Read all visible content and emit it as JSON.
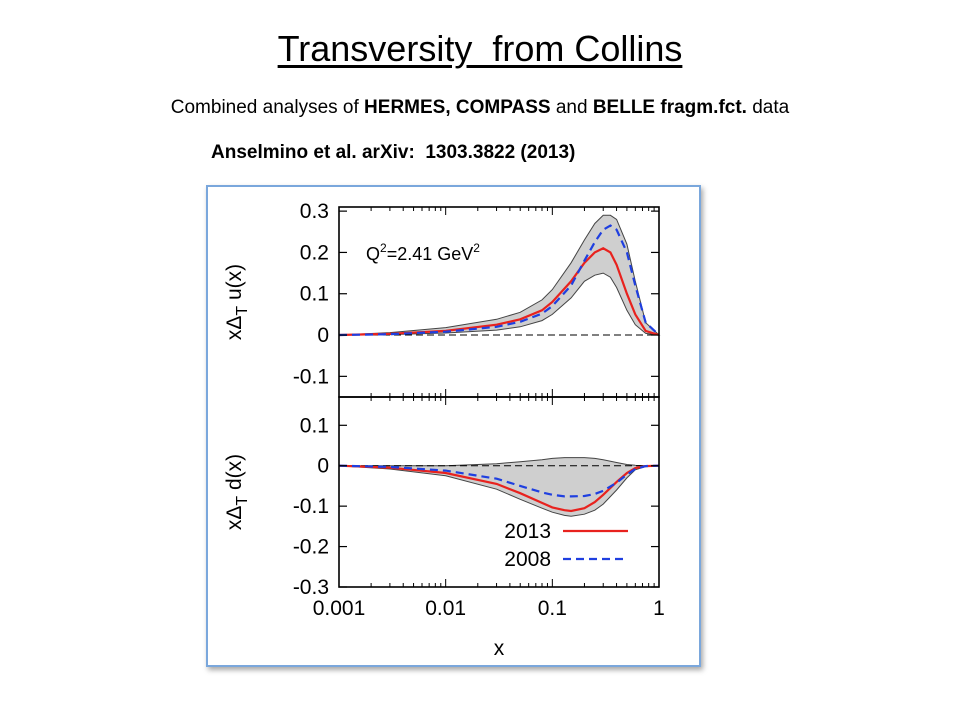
{
  "slide": {
    "title": "Transversity  from Collins",
    "subtitle_plain_1": "Combined analyses of ",
    "subtitle_bold": "HERMES, COMPASS",
    "subtitle_plain_2": " and ",
    "subtitle_bold_2": "BELLE fragm.fct.",
    "subtitle_plain_3": " data",
    "reference": "Anselmino et al. arXiv:  1303.3822 (2013)"
  },
  "colors": {
    "band_fill": "#cfcfcf",
    "band_edge": "#444444",
    "series_2013": "#e8221e",
    "series_2008": "#1f3fe0",
    "frame": "#7aa7dc"
  },
  "chart_data": [
    {
      "type": "line",
      "xscale": "log",
      "xlim": [
        0.001,
        1
      ],
      "ylim": [
        -0.15,
        0.31
      ],
      "ylabel": "xΔT u(x)",
      "xlabel": "",
      "annotation": "Q²=2.41 GeV²",
      "yticks": [
        "0.3",
        "0.2",
        "0.1",
        "0",
        "-0.1"
      ],
      "ytick_values": [
        0.3,
        0.2,
        0.1,
        0,
        -0.1
      ],
      "grid": false,
      "x": [
        0.001,
        0.003,
        0.01,
        0.03,
        0.05,
        0.08,
        0.1,
        0.15,
        0.2,
        0.25,
        0.3,
        0.35,
        0.4,
        0.5,
        0.6,
        0.75,
        1
      ],
      "series": [
        {
          "name": "2013",
          "style": "solid",
          "values": [
            0.0,
            0.003,
            0.01,
            0.025,
            0.038,
            0.06,
            0.08,
            0.13,
            0.175,
            0.2,
            0.21,
            0.2,
            0.17,
            0.1,
            0.05,
            0.01,
            0.0
          ]
        },
        {
          "name": "2008",
          "style": "dashed",
          "values": [
            0.0,
            0.002,
            0.008,
            0.02,
            0.032,
            0.052,
            0.07,
            0.12,
            0.18,
            0.225,
            0.255,
            0.265,
            0.255,
            0.2,
            0.12,
            0.03,
            0.0
          ]
        }
      ],
      "band": {
        "upper": [
          0.0,
          0.006,
          0.018,
          0.038,
          0.055,
          0.085,
          0.11,
          0.175,
          0.23,
          0.27,
          0.29,
          0.29,
          0.28,
          0.22,
          0.13,
          0.03,
          0.0
        ],
        "lower": [
          0.0,
          0.001,
          0.005,
          0.012,
          0.02,
          0.035,
          0.05,
          0.09,
          0.13,
          0.145,
          0.15,
          0.14,
          0.115,
          0.06,
          0.025,
          0.004,
          0.0
        ]
      }
    },
    {
      "type": "line",
      "xscale": "log",
      "xlim": [
        0.001,
        1
      ],
      "ylim": [
        -0.3,
        0.17
      ],
      "ylabel": "xΔT d(x)",
      "xlabel": "x",
      "xticks": [
        "0.001",
        "0.01",
        "0.1",
        "1"
      ],
      "xtick_values": [
        0.001,
        0.01,
        0.1,
        1
      ],
      "yticks": [
        "0.1",
        "0",
        "-0.1",
        "-0.2",
        "-0.3"
      ],
      "ytick_values": [
        0.1,
        0,
        -0.1,
        -0.2,
        -0.3
      ],
      "legend": "lower-right",
      "grid": false,
      "x": [
        0.001,
        0.003,
        0.01,
        0.03,
        0.05,
        0.08,
        0.1,
        0.13,
        0.15,
        0.2,
        0.25,
        0.3,
        0.4,
        0.5,
        0.6,
        0.75,
        1
      ],
      "series": [
        {
          "name": "2013",
          "style": "solid",
          "values": [
            0.0,
            -0.005,
            -0.018,
            -0.045,
            -0.068,
            -0.092,
            -0.103,
            -0.11,
            -0.112,
            -0.105,
            -0.09,
            -0.072,
            -0.04,
            -0.018,
            -0.006,
            -0.001,
            0.0
          ]
        },
        {
          "name": "2008",
          "style": "dashed",
          "values": [
            0.0,
            -0.003,
            -0.012,
            -0.032,
            -0.05,
            -0.066,
            -0.072,
            -0.076,
            -0.076,
            -0.075,
            -0.07,
            -0.062,
            -0.042,
            -0.022,
            -0.008,
            -0.001,
            0.0
          ]
        }
      ],
      "band": {
        "upper": [
          0.0,
          0.0,
          0.0,
          0.005,
          0.01,
          0.015,
          0.018,
          0.02,
          0.02,
          0.02,
          0.018,
          0.015,
          0.008,
          0.003,
          0.001,
          0.0,
          0.0
        ],
        "lower": [
          0.0,
          -0.008,
          -0.025,
          -0.058,
          -0.083,
          -0.105,
          -0.115,
          -0.123,
          -0.125,
          -0.12,
          -0.11,
          -0.095,
          -0.06,
          -0.03,
          -0.01,
          -0.002,
          0.0
        ]
      }
    }
  ]
}
